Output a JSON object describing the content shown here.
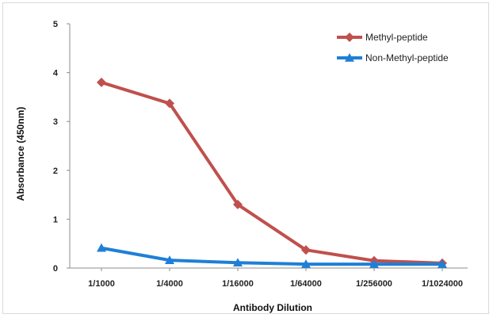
{
  "chart_data": {
    "type": "line",
    "title": "",
    "xlabel": "Antibody Dilution",
    "ylabel": "Absorbance (450nm)",
    "categories": [
      "1/1000",
      "1/4000",
      "1/16000",
      "1/64000",
      "1/256000",
      "1/1024000"
    ],
    "ylim": [
      0,
      5
    ],
    "yticks": [
      0,
      1,
      2,
      3,
      4,
      5
    ],
    "grid": false,
    "legend_position": "top-right",
    "series": [
      {
        "name": "Methyl-peptide",
        "color": "#c0504d",
        "marker": "diamond",
        "values": [
          3.8,
          3.37,
          1.3,
          0.37,
          0.15,
          0.1
        ]
      },
      {
        "name": "Non-Methyl-peptide",
        "color": "#1f7fd6",
        "marker": "triangle",
        "values": [
          0.41,
          0.16,
          0.11,
          0.08,
          0.08,
          0.08
        ]
      }
    ]
  }
}
